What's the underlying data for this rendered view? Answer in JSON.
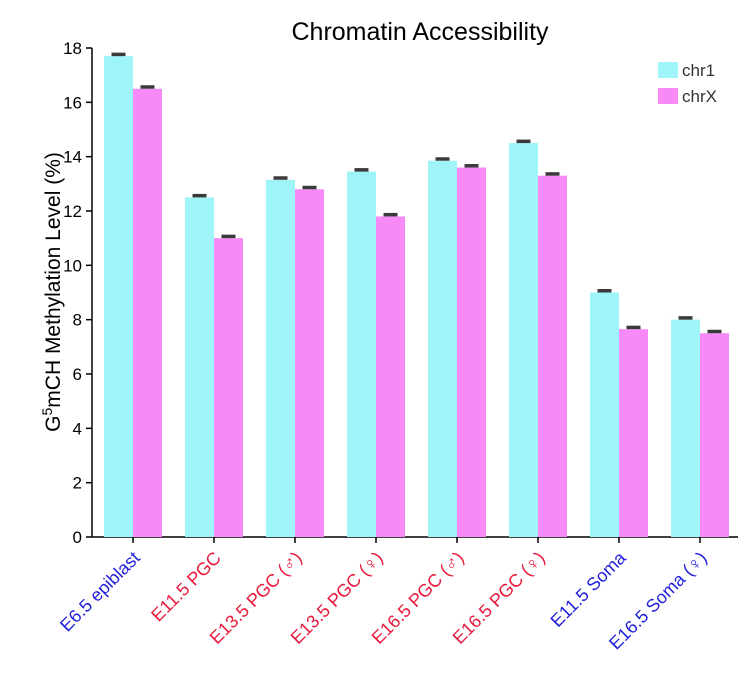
{
  "chart_data": {
    "type": "bar",
    "title": "Chromatin Accessibility",
    "ylabel_parts": {
      "prefix": "G",
      "superscript": "5",
      "suffix": "mCH Methylation Level (%)"
    },
    "ylim": [
      0,
      18
    ],
    "yticks": [
      0,
      2,
      4,
      6,
      8,
      10,
      12,
      14,
      16,
      18
    ],
    "grid": false,
    "legend_position": "top-right",
    "categories": [
      {
        "label": "E6.5 epiblast",
        "color": "#1f1fdc"
      },
      {
        "label": "E11.5 PGC",
        "color": "#e8193c"
      },
      {
        "label": "E13.5 PGC (♂)",
        "color": "#e8193c"
      },
      {
        "label": "E13.5 PGC (♀)",
        "color": "#e8193c"
      },
      {
        "label": "E16.5 PGC (♂)",
        "color": "#e8193c"
      },
      {
        "label": "E16.5 PGC (♀)",
        "color": "#e8193c"
      },
      {
        "label": "E11.5 Soma",
        "color": "#1f1fdc"
      },
      {
        "label": "E16.5 Soma (♀)",
        "color": "#1f1fdc"
      }
    ],
    "series": [
      {
        "name": "chr1",
        "color": "#9ef4f6",
        "values": [
          17.7,
          12.5,
          13.15,
          13.45,
          13.85,
          14.5,
          9.0,
          8.0
        ]
      },
      {
        "name": "chrX",
        "color": "#f78af7",
        "values": [
          16.5,
          11.0,
          12.8,
          11.8,
          13.6,
          13.3,
          7.65,
          7.5
        ]
      }
    ],
    "error_bars": true
  }
}
